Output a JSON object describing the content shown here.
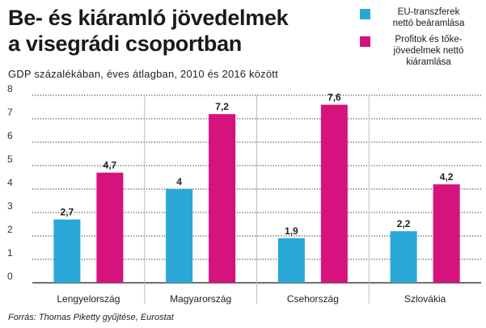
{
  "chart_data": {
    "type": "bar",
    "title_lines": [
      "Be- és kiáramló jövedelmek",
      "a visegrádi csoportban"
    ],
    "subtitle": "GDP százalékában, éves átlagban, 2010 és 2016 között",
    "categories": [
      "Lengyelország",
      "Magyarország",
      "Csehország",
      "Szlovákia"
    ],
    "series": [
      {
        "name_lines": [
          "EU-transzferek",
          "nettó beáramlása"
        ],
        "color": "#29a8d8",
        "values": [
          2.7,
          4,
          1.9,
          2.2
        ],
        "labels": [
          "2,7",
          "4",
          "1,9",
          "2,2"
        ]
      },
      {
        "name_lines": [
          "Profitok és tőke-",
          "jövedelmek nettó",
          "kiáramlása"
        ],
        "color": "#d6127c",
        "values": [
          4.7,
          7.2,
          7.6,
          4.2
        ],
        "labels": [
          "4,7",
          "7,2",
          "7,6",
          "4,2"
        ]
      }
    ],
    "yticks": [
      "0",
      "1",
      "2",
      "3",
      "4",
      "5",
      "6",
      "7",
      "8"
    ],
    "ylim": [
      0,
      8
    ],
    "grid": true,
    "legend": "top-right"
  },
  "source": "Forrás: Thomas Piketty gyűjtése, Eurostat"
}
